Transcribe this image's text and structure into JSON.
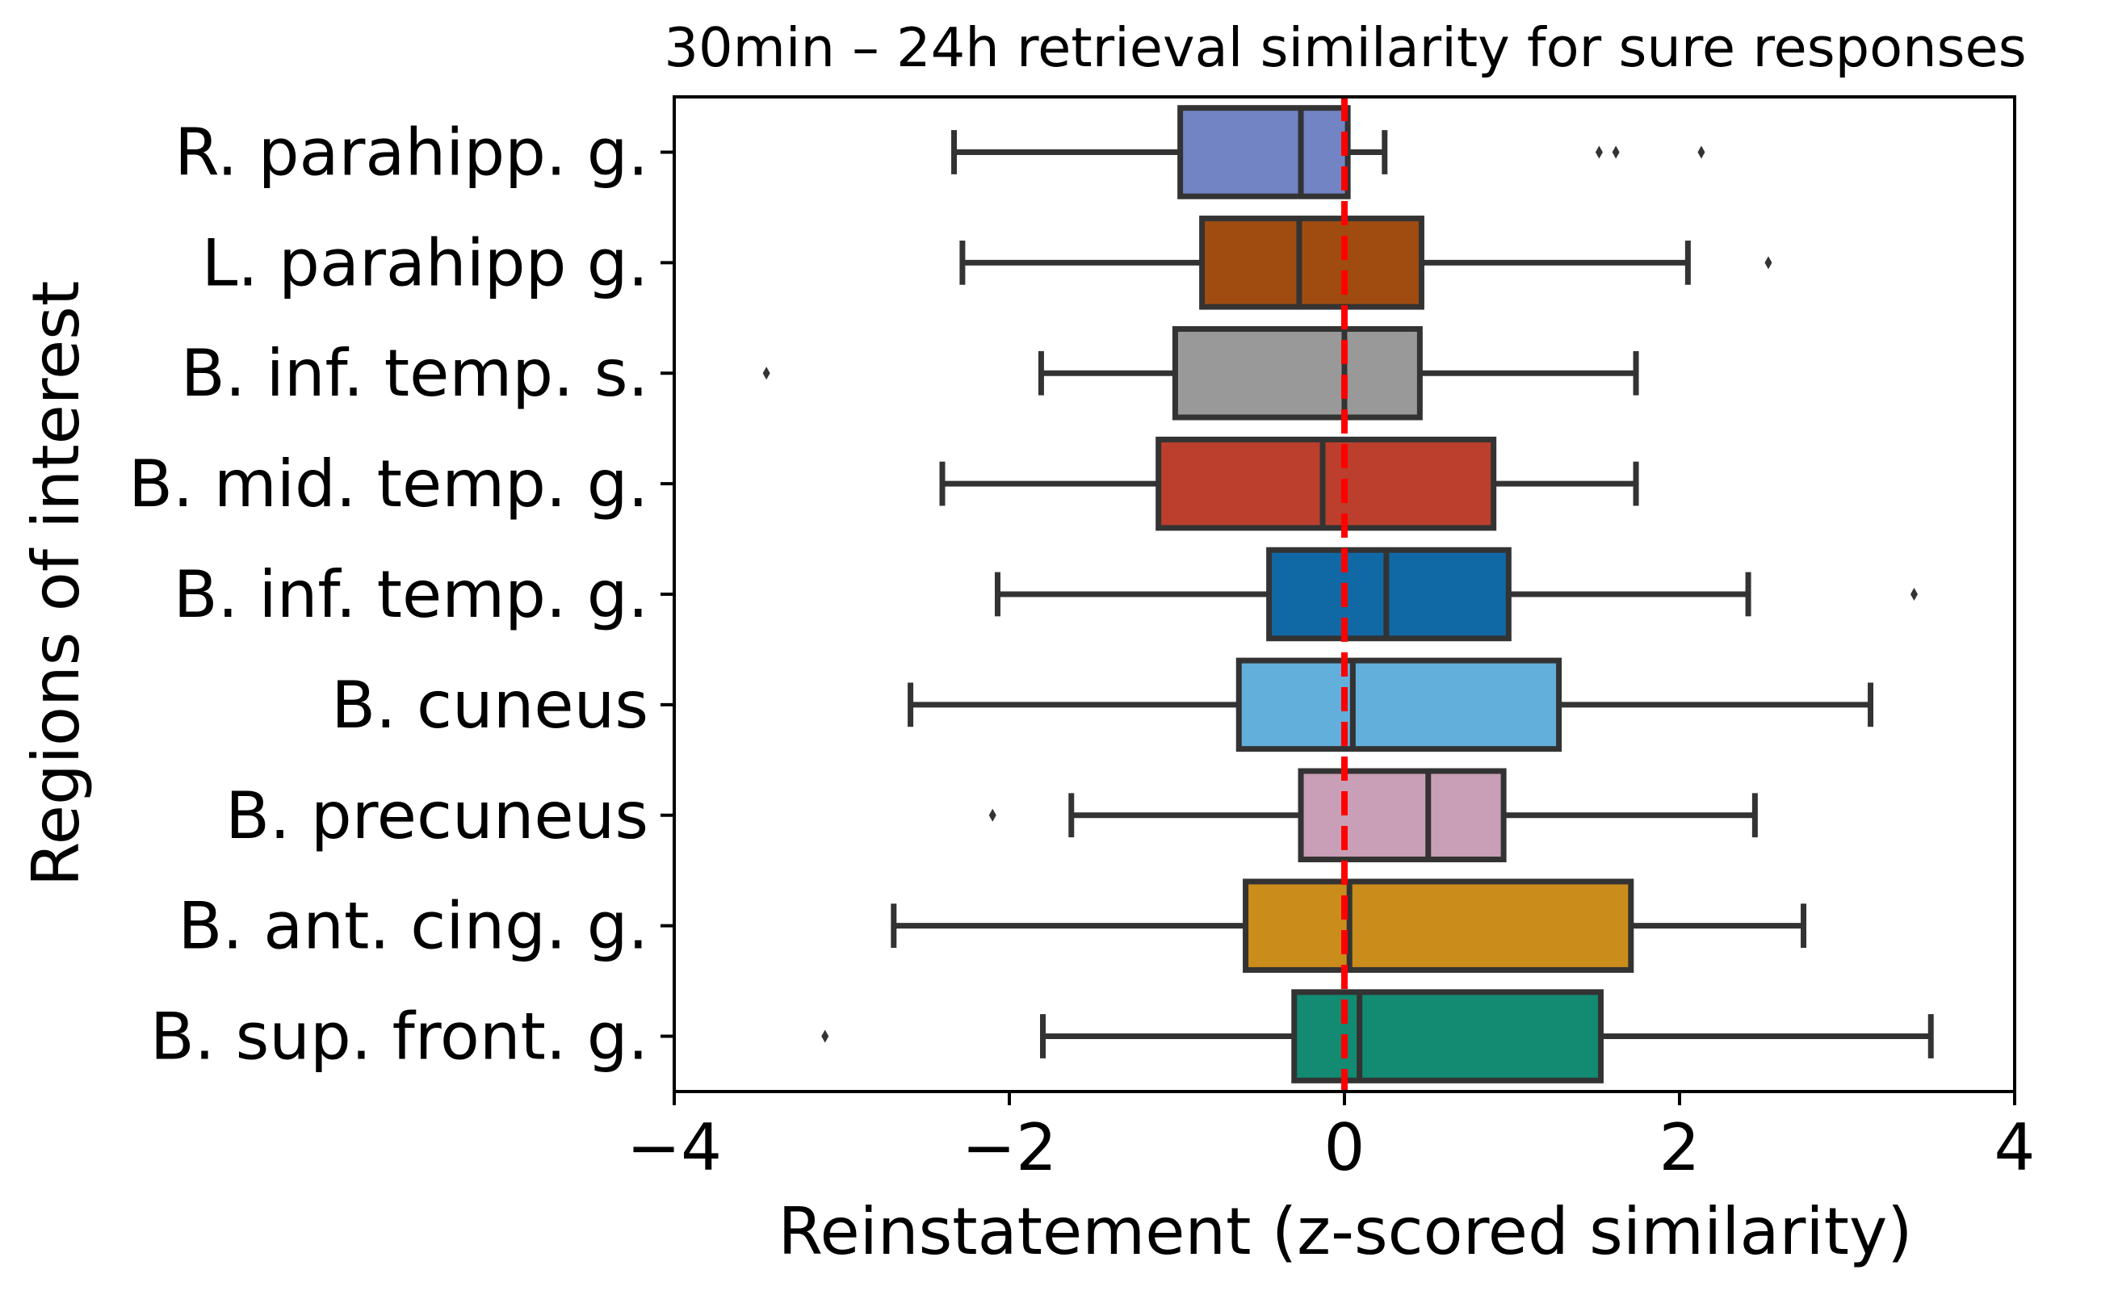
{
  "chart_data": {
    "type": "boxplot",
    "orientation": "horizontal",
    "title": "30min – 24h retrieval similarity for sure responses",
    "xlabel": "Reinstatement (z-scored similarity)",
    "ylabel": "Regions of interest",
    "xlim": [
      -4,
      4
    ],
    "xticks": [
      {
        "value": -4,
        "label": "−4"
      },
      {
        "value": -2,
        "label": "−2"
      },
      {
        "value": 0,
        "label": "0"
      },
      {
        "value": 2,
        "label": "2"
      },
      {
        "value": 4,
        "label": "4"
      }
    ],
    "reference_line": {
      "x": 0,
      "color": "#ff0000",
      "style": "dashed"
    },
    "grid": false,
    "categories": [
      "R. parahipp. g.",
      "L. parahipp g.",
      "B. inf. temp. s.",
      "B. mid. temp. g.",
      "B. inf. temp. g.",
      "B. cuneus",
      "B. precuneus",
      "B. ant. cing. g.",
      "B. sup. front. g."
    ],
    "boxes": [
      {
        "whisker_low": -2.33,
        "q1": -0.98,
        "median": -0.26,
        "q3": 0.02,
        "whisker_high": 0.24,
        "outliers": [
          1.52,
          1.62,
          2.13
        ],
        "color": "#7284c3"
      },
      {
        "whisker_low": -2.28,
        "q1": -0.85,
        "median": -0.27,
        "q3": 0.46,
        "whisker_high": 2.05,
        "outliers": [
          2.53
        ],
        "color": "#a04c10"
      },
      {
        "whisker_low": -1.81,
        "q1": -1.01,
        "median": 0.0,
        "q3": 0.45,
        "whisker_high": 1.74,
        "outliers": [
          -3.45
        ],
        "color": "#999999"
      },
      {
        "whisker_low": -2.4,
        "q1": -1.11,
        "median": -0.13,
        "q3": 0.89,
        "whisker_high": 1.74,
        "outliers": [],
        "color": "#bb3f2c"
      },
      {
        "whisker_low": -2.07,
        "q1": -0.45,
        "median": 0.25,
        "q3": 0.98,
        "whisker_high": 2.41,
        "outliers": [
          3.4
        ],
        "color": "#1069a5"
      },
      {
        "whisker_low": -2.59,
        "q1": -0.63,
        "median": 0.05,
        "q3": 1.28,
        "whisker_high": 3.14,
        "outliers": [],
        "color": "#63afdb"
      },
      {
        "whisker_low": -1.63,
        "q1": -0.26,
        "median": 0.5,
        "q3": 0.95,
        "whisker_high": 2.45,
        "outliers": [
          -2.1
        ],
        "color": "#c89fb6"
      },
      {
        "whisker_low": -2.69,
        "q1": -0.59,
        "median": 0.03,
        "q3": 1.71,
        "whisker_high": 2.74,
        "outliers": [],
        "color": "#ca8c1a"
      },
      {
        "whisker_low": -1.8,
        "q1": -0.3,
        "median": 0.09,
        "q3": 1.53,
        "whisker_high": 3.5,
        "outliers": [
          -3.1
        ],
        "color": "#138a72"
      }
    ]
  }
}
